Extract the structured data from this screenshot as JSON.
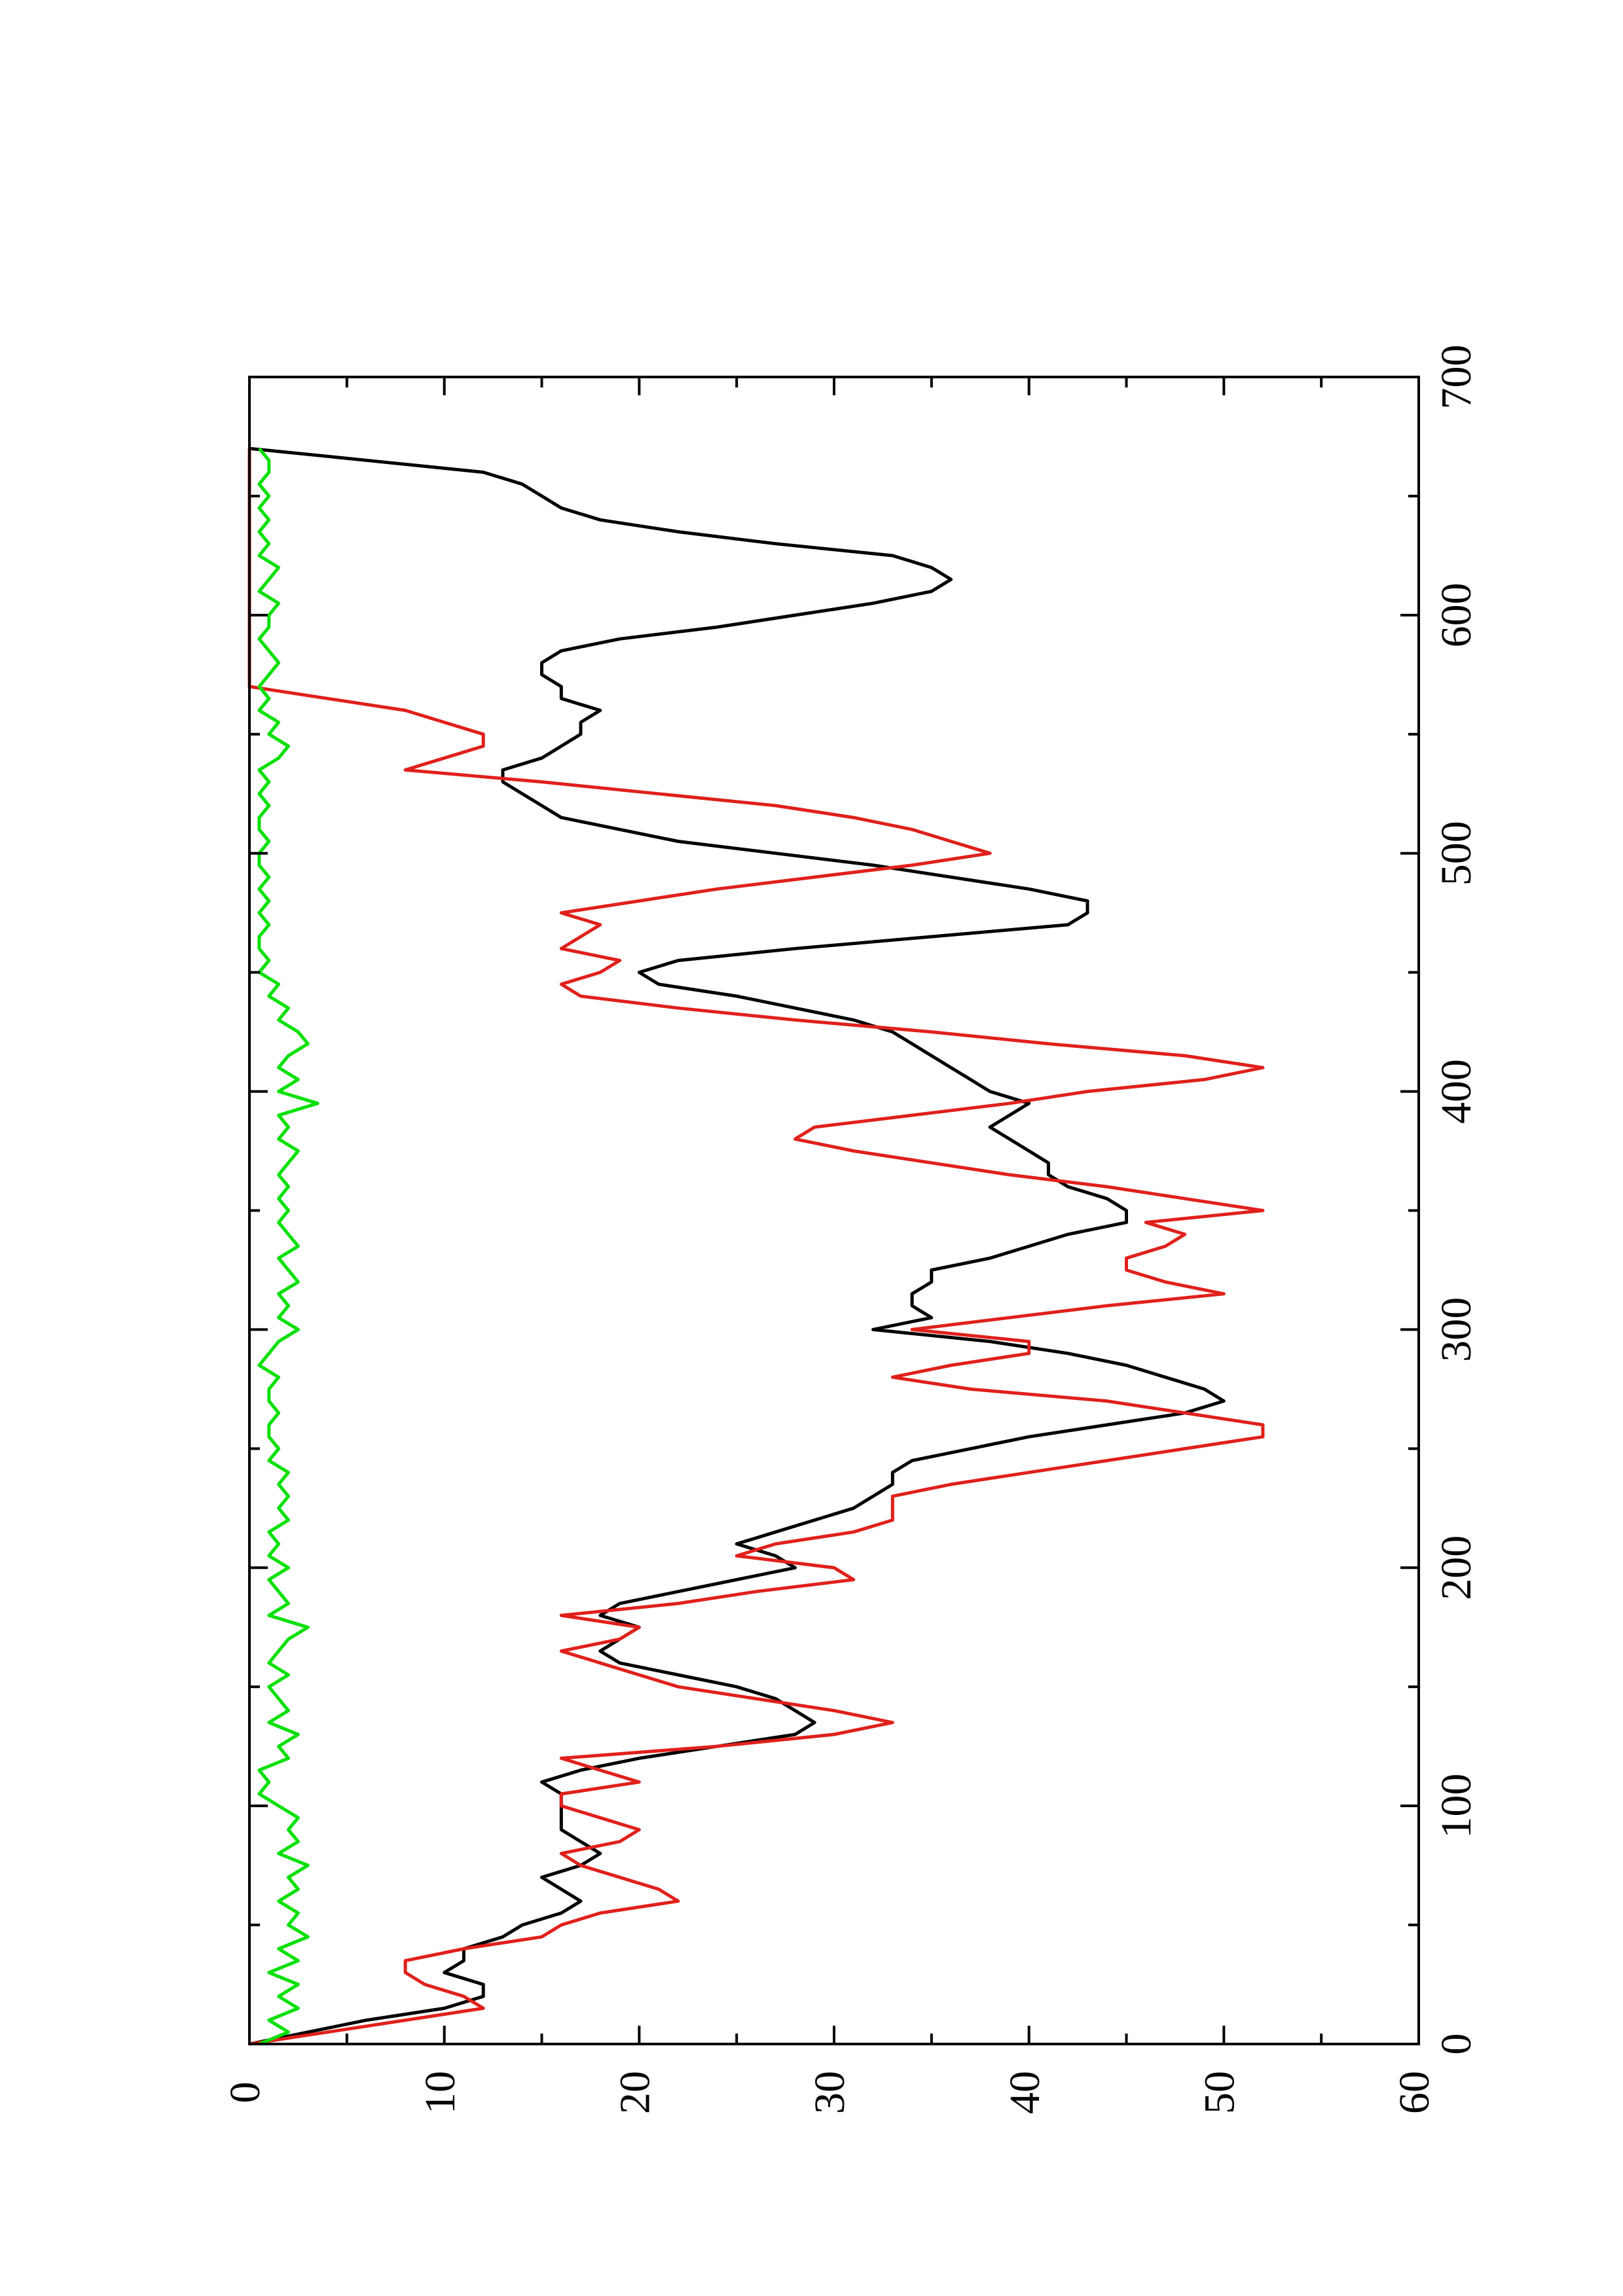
{
  "chart_data": {
    "type": "line",
    "orientation": "rotated-90-ccw",
    "title": "",
    "xlabel": "",
    "ylabel": "",
    "xlim": [
      0,
      700
    ],
    "ylim": [
      0,
      60
    ],
    "x_ticks": [
      0,
      100,
      200,
      300,
      400,
      500,
      600,
      700
    ],
    "x_minor_ticks": [
      50,
      150,
      250,
      350,
      450,
      550,
      650
    ],
    "y_ticks": [
      0,
      10,
      20,
      30,
      40,
      50,
      60
    ],
    "y_minor_ticks": [
      5,
      15,
      25,
      35,
      45,
      55
    ],
    "x_tick_labels": [
      "0",
      "100",
      "200",
      "300",
      "400",
      "500",
      "600",
      "700"
    ],
    "y_tick_labels": [
      "0",
      "10",
      "20",
      "30",
      "40",
      "50",
      "60"
    ],
    "grid": false,
    "legend": "none",
    "series": [
      {
        "color": "#000000",
        "x": [
          0,
          5,
          10,
          15,
          20,
          25,
          30,
          35,
          40,
          45,
          50,
          55,
          60,
          65,
          70,
          75,
          80,
          85,
          90,
          95,
          100,
          105,
          110,
          115,
          120,
          125,
          130,
          135,
          140,
          145,
          150,
          155,
          160,
          165,
          170,
          175,
          180,
          185,
          190,
          195,
          200,
          205,
          210,
          215,
          220,
          225,
          230,
          235,
          240,
          245,
          250,
          255,
          260,
          265,
          270,
          275,
          280,
          285,
          290,
          295,
          300,
          305,
          310,
          315,
          320,
          325,
          330,
          335,
          340,
          345,
          350,
          355,
          360,
          365,
          370,
          375,
          380,
          385,
          390,
          395,
          400,
          405,
          410,
          415,
          420,
          425,
          430,
          435,
          440,
          445,
          450,
          455,
          460,
          465,
          470,
          475,
          480,
          485,
          490,
          495,
          500,
          505,
          510,
          515,
          520,
          525,
          530,
          535,
          540,
          545,
          550,
          555,
          560,
          565,
          570,
          575,
          580,
          585,
          590,
          595,
          600,
          605,
          610,
          615,
          620,
          625,
          630,
          635,
          640,
          645,
          650,
          655,
          660,
          665,
          670
        ],
        "values": [
          0,
          3,
          6,
          10,
          12,
          12,
          10,
          11,
          11,
          13,
          14,
          16,
          17,
          16,
          15,
          17,
          18,
          17,
          16,
          16,
          16,
          16,
          15,
          17,
          20,
          24,
          28,
          29,
          28,
          27,
          25,
          22,
          19,
          18,
          19,
          20,
          18,
          19,
          22,
          25,
          28,
          27,
          25,
          27,
          29,
          31,
          32,
          33,
          33,
          34,
          37,
          40,
          44,
          48,
          50,
          49,
          47,
          45,
          42,
          38,
          32,
          35,
          34,
          34,
          35,
          35,
          38,
          40,
          42,
          45,
          45,
          44,
          42,
          41,
          41,
          40,
          39,
          38,
          39,
          40,
          38,
          37,
          36,
          35,
          34,
          33,
          31,
          28,
          25,
          21,
          20,
          22,
          28,
          35,
          42,
          43,
          43,
          40,
          36,
          32,
          27,
          22,
          19,
          16,
          15,
          14,
          13,
          13,
          15,
          16,
          17,
          17,
          18,
          16,
          16,
          15,
          15,
          16,
          19,
          24,
          28,
          32,
          35,
          36,
          35,
          33,
          27,
          22,
          18,
          16,
          15,
          14,
          12,
          6,
          0
        ]
      },
      {
        "color": "#e0201b",
        "x": [
          0,
          5,
          10,
          15,
          20,
          25,
          30,
          35,
          40,
          45,
          50,
          55,
          60,
          65,
          70,
          75,
          80,
          85,
          90,
          95,
          100,
          105,
          110,
          115,
          120,
          125,
          130,
          135,
          140,
          145,
          150,
          155,
          160,
          165,
          170,
          175,
          180,
          185,
          190,
          195,
          200,
          205,
          210,
          215,
          220,
          225,
          230,
          235,
          240,
          245,
          250,
          255,
          260,
          265,
          270,
          275,
          280,
          285,
          290,
          295,
          300,
          305,
          310,
          315,
          320,
          325,
          330,
          335,
          340,
          345,
          350,
          355,
          360,
          365,
          370,
          375,
          380,
          385,
          390,
          395,
          400,
          405,
          410,
          415,
          420,
          425,
          430,
          435,
          440,
          445,
          450,
          455,
          460,
          465,
          470,
          475,
          480,
          485,
          490,
          495,
          500,
          505,
          510,
          515,
          520,
          525,
          530,
          535,
          540,
          545,
          550,
          555,
          560,
          565,
          570,
          575,
          580,
          585,
          590,
          595,
          600,
          605,
          610,
          615,
          620,
          625,
          630,
          635,
          640,
          645,
          650,
          655,
          660,
          665,
          670
        ],
        "values": [
          0,
          4,
          8,
          12,
          11,
          9,
          8,
          8,
          11,
          15,
          16,
          18,
          22,
          21,
          19,
          17,
          16,
          19,
          20,
          18,
          16,
          16,
          20,
          18,
          16,
          24,
          30,
          33,
          30,
          26,
          22,
          20,
          18,
          16,
          19,
          20,
          16,
          22,
          26,
          31,
          30,
          25,
          27,
          31,
          33,
          33,
          33,
          36,
          40,
          44,
          48,
          52,
          52,
          48,
          44,
          37,
          33,
          36,
          40,
          40,
          34,
          39,
          44,
          50,
          47,
          45,
          45,
          47,
          48,
          46,
          52,
          48,
          44,
          39,
          35,
          31,
          28,
          29,
          34,
          39,
          43,
          49,
          52,
          48,
          41,
          35,
          28,
          22,
          17,
          16,
          18,
          19,
          16,
          17,
          18,
          16,
          20,
          24,
          29,
          34,
          38,
          36,
          34,
          31,
          27,
          21,
          15,
          8,
          10,
          12,
          12,
          10,
          8,
          4,
          0,
          0,
          0,
          0,
          0,
          0,
          0,
          0,
          0,
          0,
          0,
          0,
          0,
          0,
          0,
          0,
          0,
          0,
          0,
          0,
          0
        ]
      },
      {
        "color": "#00e000",
        "x": [
          0,
          5,
          10,
          15,
          20,
          25,
          30,
          35,
          40,
          45,
          50,
          55,
          60,
          65,
          70,
          75,
          80,
          85,
          90,
          95,
          100,
          105,
          110,
          115,
          120,
          125,
          130,
          135,
          140,
          145,
          150,
          155,
          160,
          165,
          170,
          175,
          180,
          185,
          190,
          195,
          200,
          205,
          210,
          215,
          220,
          225,
          230,
          235,
          240,
          245,
          250,
          255,
          260,
          265,
          270,
          275,
          280,
          285,
          290,
          295,
          300,
          305,
          310,
          315,
          320,
          325,
          330,
          335,
          340,
          345,
          350,
          355,
          360,
          365,
          370,
          375,
          380,
          385,
          390,
          395,
          400,
          405,
          410,
          415,
          420,
          425,
          430,
          435,
          440,
          445,
          450,
          455,
          460,
          465,
          470,
          475,
          480,
          485,
          490,
          495,
          500,
          505,
          510,
          515,
          520,
          525,
          530,
          535,
          540,
          545,
          550,
          555,
          560,
          565,
          570,
          575,
          580,
          585,
          590,
          595,
          600,
          605,
          610,
          615,
          620,
          625,
          630,
          635,
          640,
          645,
          650,
          655,
          660,
          665,
          670
        ],
        "values": [
          0.5,
          2.0,
          1.0,
          2.5,
          1.5,
          2.5,
          1.0,
          2.5,
          1.5,
          3.0,
          2.0,
          2.5,
          1.5,
          2.5,
          2.0,
          3.0,
          1.5,
          2.5,
          2.0,
          2.5,
          1.5,
          0.5,
          1.0,
          0.5,
          2.0,
          1.5,
          2.5,
          1.0,
          2.0,
          1.5,
          1.0,
          2.0,
          1.0,
          1.5,
          2.0,
          3.0,
          1.0,
          2.0,
          1.5,
          1.0,
          2.0,
          1.0,
          1.5,
          1.0,
          2.0,
          1.5,
          2.0,
          1.5,
          2.0,
          1.0,
          1.5,
          1.0,
          1.0,
          1.5,
          1.0,
          1.0,
          1.5,
          0.5,
          1.0,
          1.5,
          2.5,
          1.5,
          2.0,
          1.5,
          2.5,
          2.0,
          1.5,
          2.5,
          2.0,
          1.5,
          2.0,
          1.5,
          2.0,
          1.5,
          2.0,
          2.5,
          1.5,
          2.0,
          1.5,
          3.5,
          1.5,
          2.5,
          1.5,
          2.0,
          3.0,
          2.5,
          1.5,
          2.0,
          1.0,
          1.5,
          0.5,
          1.0,
          0.5,
          0.5,
          1.0,
          0.5,
          1.0,
          0.5,
          1.0,
          0.5,
          0.5,
          1.0,
          0.5,
          0.5,
          1.0,
          0.5,
          1.0,
          0.5,
          1.5,
          2.0,
          1.0,
          1.5,
          0.5,
          1.0,
          0.5,
          1.0,
          1.5,
          1.0,
          0.5,
          1.0,
          1.0,
          1.5,
          0.5,
          1.0,
          1.5,
          0.5,
          1.0,
          0.5,
          1.0,
          0.5,
          1.0,
          0.5,
          1.0,
          1.0,
          0.5
        ]
      }
    ]
  }
}
